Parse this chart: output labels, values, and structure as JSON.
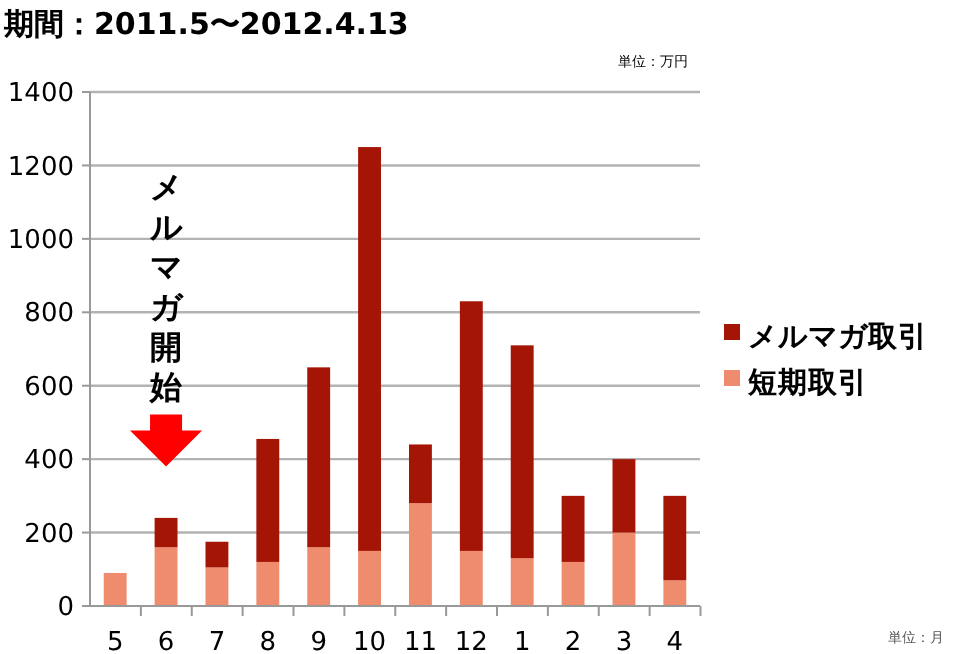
{
  "chart_data": {
    "type": "bar",
    "title": "期間：2011.5〜2012.4.13",
    "stacked": true,
    "categories": [
      "5",
      "6",
      "7",
      "8",
      "9",
      "10",
      "11",
      "12",
      "1",
      "2",
      "3",
      "4"
    ],
    "series": [
      {
        "name": "短期取引",
        "color": "#f08c6e",
        "values": [
          90,
          160,
          105,
          120,
          160,
          150,
          280,
          150,
          130,
          120,
          200,
          70
        ]
      },
      {
        "name": "メルマガ取引",
        "color": "#a51505",
        "values": [
          0,
          80,
          70,
          335,
          490,
          1100,
          160,
          680,
          580,
          180,
          200,
          230
        ]
      }
    ],
    "ylim": [
      0,
      1400
    ],
    "yticks": [
      0,
      200,
      400,
      600,
      800,
      1000,
      1200,
      1400
    ],
    "grid": "y",
    "legend": "right",
    "annotations": [
      "単位：万円",
      "単位：月",
      "メルマガ開始"
    ]
  }
}
